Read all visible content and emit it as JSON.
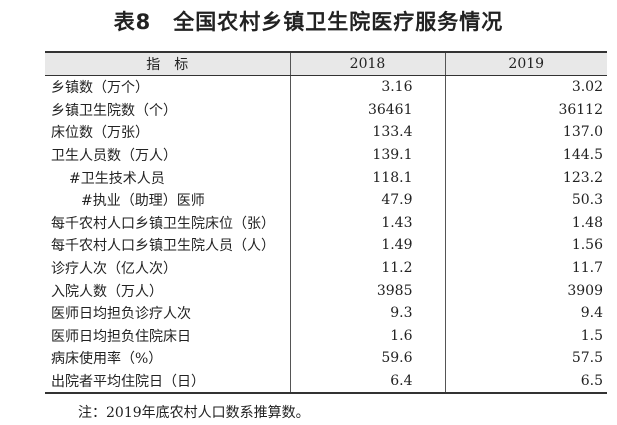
{
  "title": "表8　全国农村乡镇卫生院医疗服务情况",
  "table": {
    "header": [
      "指　标",
      "2018",
      "2019"
    ],
    "rows": [
      [
        "乡镇数（万个）",
        "3.16",
        "3.02"
      ],
      [
        "乡镇卫生院数（个）",
        "36461",
        "36112"
      ],
      [
        "床位数（万张）",
        "133.4",
        "137.0"
      ],
      [
        "卫生人员数（万人）",
        "139.1",
        "144.5"
      ],
      [
        "#卫生技术人员",
        "118.1",
        "123.2"
      ],
      [
        "#执业（助理）医师",
        "47.9",
        "50.3"
      ],
      [
        "每千农村人口乡镇卫生院床位（张）",
        "1.43",
        "1.48"
      ],
      [
        "每千农村人口乡镇卫生院人员（人）",
        "1.49",
        "1.56"
      ],
      [
        "诊疗人次（亿人次）",
        "11.2",
        "11.7"
      ],
      [
        "入院人数（万人）",
        "3985",
        "3909"
      ],
      [
        "医师日均担负诊疗人次",
        "9.3",
        "9.4"
      ],
      [
        "医师日均担负住院床日",
        "1.6",
        "1.5"
      ],
      [
        "病床使用率（%）",
        "59.6",
        "57.5"
      ],
      [
        "出院者平均住院日（日）",
        "6.4",
        "6.5"
      ]
    ]
  },
  "note": "注：2019年底农村人口数系推算数。"
}
